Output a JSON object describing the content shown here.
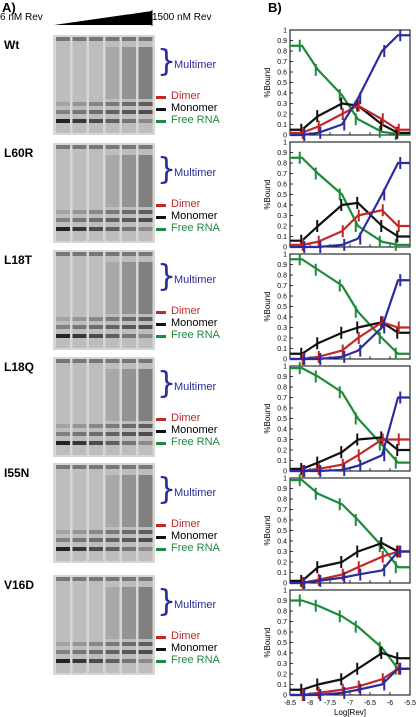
{
  "panel_a": {
    "label": "A)",
    "conc_low": "6 nM Rev",
    "conc_high": "1500 nM Rev",
    "samples": [
      "Wt",
      "L60R",
      "L18T",
      "L18Q",
      "I55N",
      "V16D"
    ],
    "legend": {
      "multimer": "Multimer",
      "dimer": "Dimer",
      "monomer": "Monomer",
      "free": "Free RNA"
    }
  },
  "panel_b": {
    "label": "B)",
    "ylabel": "%Bound",
    "xlabel": "Log[Rev]",
    "yticks": [
      "0",
      "0.1",
      "0.2",
      "0.3",
      "0.4",
      "0.5",
      "0.6",
      "0.7",
      "0.8",
      "0.9",
      "1"
    ],
    "xticks": [
      "-8.5",
      "-8",
      "-7.5",
      "-7",
      "-6.5",
      "-6",
      "-5.5"
    ]
  },
  "colors": {
    "multimer": "#2b2b9c",
    "dimer": "#c0282a",
    "monomer": "#111111",
    "free": "#1e8a3c"
  },
  "chart_data": [
    {
      "type": "line",
      "name": "Wt",
      "x": [
        -8.2,
        -7.8,
        -7.2,
        -6.8,
        -6.2,
        -5.8
      ],
      "series": [
        {
          "key": "free",
          "values": [
            0.85,
            0.62,
            0.38,
            0.15,
            0.03,
            0.01
          ]
        },
        {
          "key": "monomer",
          "values": [
            0.05,
            0.18,
            0.3,
            0.28,
            0.1,
            0.02
          ]
        },
        {
          "key": "dimer",
          "values": [
            0.02,
            0.08,
            0.2,
            0.28,
            0.15,
            0.05
          ]
        },
        {
          "key": "multimer",
          "values": [
            0.0,
            0.02,
            0.1,
            0.35,
            0.8,
            0.95
          ]
        }
      ],
      "xlim": [
        -8.5,
        -5.5
      ],
      "ylim": [
        0,
        1
      ]
    },
    {
      "type": "line",
      "name": "L60R",
      "x": [
        -8.2,
        -7.8,
        -7.2,
        -6.8,
        -6.2,
        -5.8
      ],
      "series": [
        {
          "key": "free",
          "values": [
            0.85,
            0.7,
            0.5,
            0.2,
            0.05,
            0.02
          ]
        },
        {
          "key": "monomer",
          "values": [
            0.06,
            0.2,
            0.4,
            0.42,
            0.2,
            0.1
          ]
        },
        {
          "key": "dimer",
          "values": [
            0.02,
            0.05,
            0.15,
            0.3,
            0.35,
            0.2
          ]
        },
        {
          "key": "multimer",
          "values": [
            0.0,
            0.0,
            0.02,
            0.08,
            0.5,
            0.8
          ]
        }
      ],
      "xlim": [
        -8.5,
        -5.5
      ],
      "ylim": [
        0,
        1
      ]
    },
    {
      "type": "line",
      "name": "L18T",
      "x": [
        -8.2,
        -7.8,
        -7.2,
        -6.8,
        -6.2,
        -5.8
      ],
      "series": [
        {
          "key": "free",
          "values": [
            0.95,
            0.85,
            0.7,
            0.45,
            0.2,
            0.05
          ]
        },
        {
          "key": "monomer",
          "values": [
            0.05,
            0.15,
            0.25,
            0.3,
            0.35,
            0.25
          ]
        },
        {
          "key": "dimer",
          "values": [
            0.0,
            0.02,
            0.08,
            0.2,
            0.35,
            0.3
          ]
        },
        {
          "key": "multimer",
          "values": [
            0.0,
            0.0,
            0.02,
            0.08,
            0.3,
            0.75
          ]
        }
      ],
      "xlim": [
        -8.5,
        -5.5
      ],
      "ylim": [
        0,
        1
      ]
    },
    {
      "type": "line",
      "name": "L18Q",
      "x": [
        -8.2,
        -7.8,
        -7.2,
        -6.8,
        -6.2,
        -5.8
      ],
      "series": [
        {
          "key": "free",
          "values": [
            0.98,
            0.9,
            0.75,
            0.5,
            0.25,
            0.08
          ]
        },
        {
          "key": "monomer",
          "values": [
            0.02,
            0.08,
            0.18,
            0.3,
            0.32,
            0.2
          ]
        },
        {
          "key": "dimer",
          "values": [
            0.0,
            0.02,
            0.06,
            0.15,
            0.3,
            0.3
          ]
        },
        {
          "key": "multimer",
          "values": [
            0.0,
            0.0,
            0.01,
            0.05,
            0.15,
            0.7
          ]
        }
      ],
      "xlim": [
        -8.5,
        -5.5
      ],
      "ylim": [
        0,
        1
      ]
    },
    {
      "type": "line",
      "name": "I55N",
      "x": [
        -8.2,
        -7.8,
        -7.2,
        -6.8,
        -6.2,
        -5.8
      ],
      "series": [
        {
          "key": "free",
          "values": [
            0.98,
            0.85,
            0.75,
            0.6,
            0.35,
            0.15
          ]
        },
        {
          "key": "monomer",
          "values": [
            0.02,
            0.15,
            0.2,
            0.3,
            0.38,
            0.3
          ]
        },
        {
          "key": "dimer",
          "values": [
            0.0,
            0.03,
            0.08,
            0.15,
            0.25,
            0.3
          ]
        },
        {
          "key": "multimer",
          "values": [
            0.0,
            0.02,
            0.05,
            0.08,
            0.12,
            0.3
          ]
        }
      ],
      "xlim": [
        -8.5,
        -5.5
      ],
      "ylim": [
        0,
        1
      ]
    },
    {
      "type": "line",
      "name": "V16D",
      "x": [
        -8.2,
        -7.8,
        -7.2,
        -6.8,
        -6.2,
        -5.8
      ],
      "series": [
        {
          "key": "free",
          "values": [
            0.9,
            0.85,
            0.75,
            0.65,
            0.45,
            0.25
          ]
        },
        {
          "key": "monomer",
          "values": [
            0.05,
            0.1,
            0.15,
            0.25,
            0.4,
            0.35
          ]
        },
        {
          "key": "dimer",
          "values": [
            0.0,
            0.02,
            0.05,
            0.08,
            0.15,
            0.25
          ]
        },
        {
          "key": "multimer",
          "values": [
            0.0,
            0.0,
            0.02,
            0.05,
            0.1,
            0.25
          ]
        }
      ],
      "xlim": [
        -8.5,
        -5.5
      ],
      "ylim": [
        0,
        1
      ]
    }
  ]
}
